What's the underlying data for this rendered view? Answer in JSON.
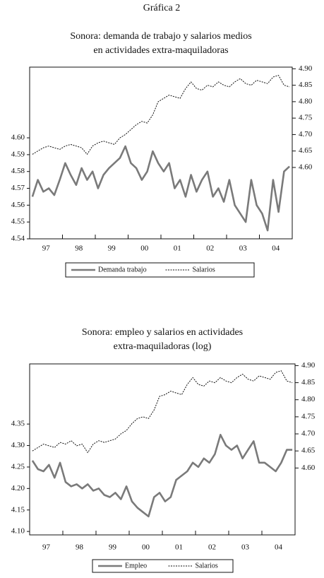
{
  "heading": "Gráfica 2",
  "chart_data": [
    {
      "type": "line",
      "title": [
        "Sonora: demanda de trabajo y salarios medios",
        "en actividades extra-maquiladoras"
      ],
      "categories": [
        null,
        null,
        null,
        "97",
        null,
        null,
        null,
        null,
        null,
        "98",
        null,
        null,
        null,
        null,
        null,
        "99",
        null,
        null,
        null,
        null,
        null,
        "00",
        null,
        null,
        null,
        null,
        null,
        "01",
        null,
        null,
        null,
        null,
        null,
        "02",
        null,
        null,
        null,
        null,
        null,
        "03",
        null,
        null,
        null,
        null,
        null,
        "04",
        null,
        null
      ],
      "ylim": [
        4.54,
        4.642
      ],
      "yticks": [
        4.54,
        4.55,
        4.56,
        4.57,
        4.58,
        4.59,
        {
          "value": 4.6,
          "label": "4.60"
        }
      ],
      "y2lim": [
        4.383,
        4.905
      ],
      "y2ticks": [
        {
          "value": 4.6,
          "label": "4.60"
        },
        4.65,
        {
          "value": 4.7,
          "label": "4.70"
        },
        4.75,
        {
          "value": 4.8,
          "label": "4.80"
        },
        4.85,
        {
          "value": 4.9,
          "label": "4.90"
        }
      ],
      "series": [
        {
          "name": "Demanda trabajo",
          "color": "#7a7a7a",
          "line_style": "solid",
          "values": [
            4.565,
            4.575,
            4.568,
            4.57,
            4.566,
            4.575,
            4.585,
            4.578,
            4.572,
            4.582,
            4.575,
            4.58,
            4.57,
            4.578,
            4.582,
            4.585,
            4.588,
            4.595,
            4.585,
            4.582,
            4.575,
            4.58,
            4.592,
            4.585,
            4.58,
            4.585,
            4.57,
            4.575,
            4.565,
            4.578,
            4.568,
            4.575,
            4.58,
            4.565,
            4.57,
            4.562,
            4.575,
            4.56,
            4.555,
            4.55,
            4.575,
            4.56,
            4.555,
            4.545,
            4.575,
            4.556,
            4.58,
            4.583
          ]
        },
        {
          "name": "Salarios",
          "color": "#111111",
          "line_style": "dashed",
          "axis": "y2",
          "values": [
            4.64,
            4.65,
            4.66,
            4.665,
            4.66,
            4.655,
            4.665,
            4.67,
            4.665,
            4.66,
            4.64,
            4.665,
            4.675,
            4.68,
            4.675,
            4.67,
            4.69,
            4.7,
            4.715,
            4.73,
            4.74,
            4.735,
            4.76,
            4.8,
            4.81,
            4.82,
            4.815,
            4.81,
            4.84,
            4.86,
            4.84,
            4.835,
            4.85,
            4.845,
            4.86,
            4.85,
            4.845,
            4.86,
            4.87,
            4.855,
            4.85,
            4.865,
            4.86,
            4.855,
            4.875,
            4.88,
            4.85,
            4.845
          ]
        }
      ]
    },
    {
      "type": "line",
      "title": [
        "Sonora: empleo y salarios en actividades",
        "extra-maquiladoras (log)"
      ],
      "categories": [
        null,
        null,
        null,
        "97",
        null,
        null,
        null,
        null,
        null,
        "98",
        null,
        null,
        null,
        null,
        null,
        "99",
        null,
        null,
        null,
        null,
        null,
        "00",
        null,
        null,
        null,
        null,
        null,
        "01",
        null,
        null,
        null,
        null,
        null,
        "02",
        null,
        null,
        null,
        null,
        null,
        "03",
        null,
        null,
        null,
        null,
        null,
        "04",
        null,
        null
      ],
      "ylim": [
        4.092,
        4.49
      ],
      "yticks": [
        {
          "value": 4.1,
          "label": "4.10"
        },
        4.15,
        {
          "value": 4.2,
          "label": "4.20"
        },
        4.25,
        {
          "value": 4.3,
          "label": "4.30"
        },
        4.35
      ],
      "y2lim": [
        4.404,
        4.905
      ],
      "y2ticks": [
        {
          "value": 4.6,
          "label": "4.60"
        },
        4.65,
        {
          "value": 4.7,
          "label": "4.70"
        },
        4.75,
        {
          "value": 4.8,
          "label": "4.80"
        },
        4.85,
        {
          "value": 4.9,
          "label": "4.90"
        }
      ],
      "series": [
        {
          "name": "Empleo",
          "color": "#7a7a7a",
          "line_style": "solid",
          "values": [
            4.265,
            4.245,
            4.24,
            4.255,
            4.225,
            4.26,
            4.215,
            4.205,
            4.21,
            4.2,
            4.21,
            4.195,
            4.2,
            4.185,
            4.18,
            4.19,
            4.175,
            4.205,
            4.17,
            4.155,
            4.145,
            4.135,
            4.18,
            4.19,
            4.17,
            4.18,
            4.22,
            4.23,
            4.24,
            4.26,
            4.25,
            4.27,
            4.26,
            4.28,
            4.325,
            4.3,
            4.29,
            4.3,
            4.27,
            4.29,
            4.31,
            4.26,
            4.26,
            4.25,
            4.24,
            4.26,
            4.29,
            4.29
          ]
        },
        {
          "name": "Salarios",
          "color": "#111111",
          "line_style": "dashed",
          "axis": "y2",
          "values": [
            4.65,
            4.66,
            4.67,
            4.665,
            4.66,
            4.675,
            4.67,
            4.68,
            4.665,
            4.67,
            4.645,
            4.67,
            4.68,
            4.675,
            4.68,
            4.685,
            4.7,
            4.71,
            4.73,
            4.745,
            4.75,
            4.745,
            4.77,
            4.81,
            4.815,
            4.825,
            4.82,
            4.815,
            4.845,
            4.865,
            4.845,
            4.84,
            4.855,
            4.85,
            4.865,
            4.855,
            4.85,
            4.865,
            4.875,
            4.86,
            4.855,
            4.87,
            4.865,
            4.86,
            4.88,
            4.885,
            4.855,
            4.85
          ]
        }
      ]
    }
  ]
}
